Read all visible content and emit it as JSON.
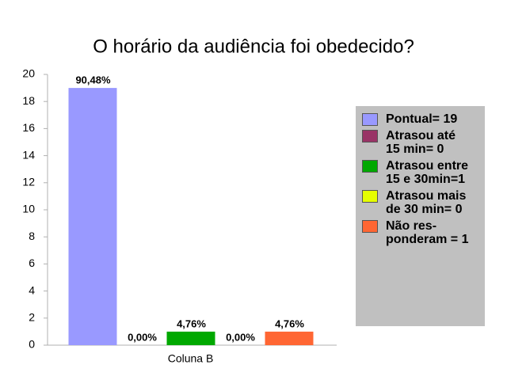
{
  "chart_data": {
    "type": "bar",
    "title": "O horário da audiência foi obedecido?",
    "categories": [
      "Coluna B"
    ],
    "series": [
      {
        "name": "Pontual= 19",
        "color": "#9999ff",
        "values": [
          19
        ],
        "value_labels": [
          "90,48%"
        ]
      },
      {
        "name": "Atrasou até 15 min= 0",
        "color": "#993366",
        "values": [
          0
        ],
        "value_labels": [
          "0,00%"
        ]
      },
      {
        "name": "Atrasou entre 15 e 30min=1",
        "color": "#00a800",
        "values": [
          1
        ],
        "value_labels": [
          "4,76%"
        ]
      },
      {
        "name": "Atrasou mais de 30 min= 0",
        "color": "#e6ff00",
        "values": [
          0
        ],
        "value_labels": [
          "0,00%"
        ]
      },
      {
        "name": "Não res-ponderam = 1",
        "color": "#ff6633",
        "values": [
          1
        ],
        "value_labels": [
          "4,76%"
        ]
      }
    ],
    "ylim": [
      0,
      20
    ],
    "yticks": [
      0,
      2,
      4,
      6,
      8,
      10,
      12,
      14,
      16,
      18,
      20
    ],
    "legend": "right"
  }
}
